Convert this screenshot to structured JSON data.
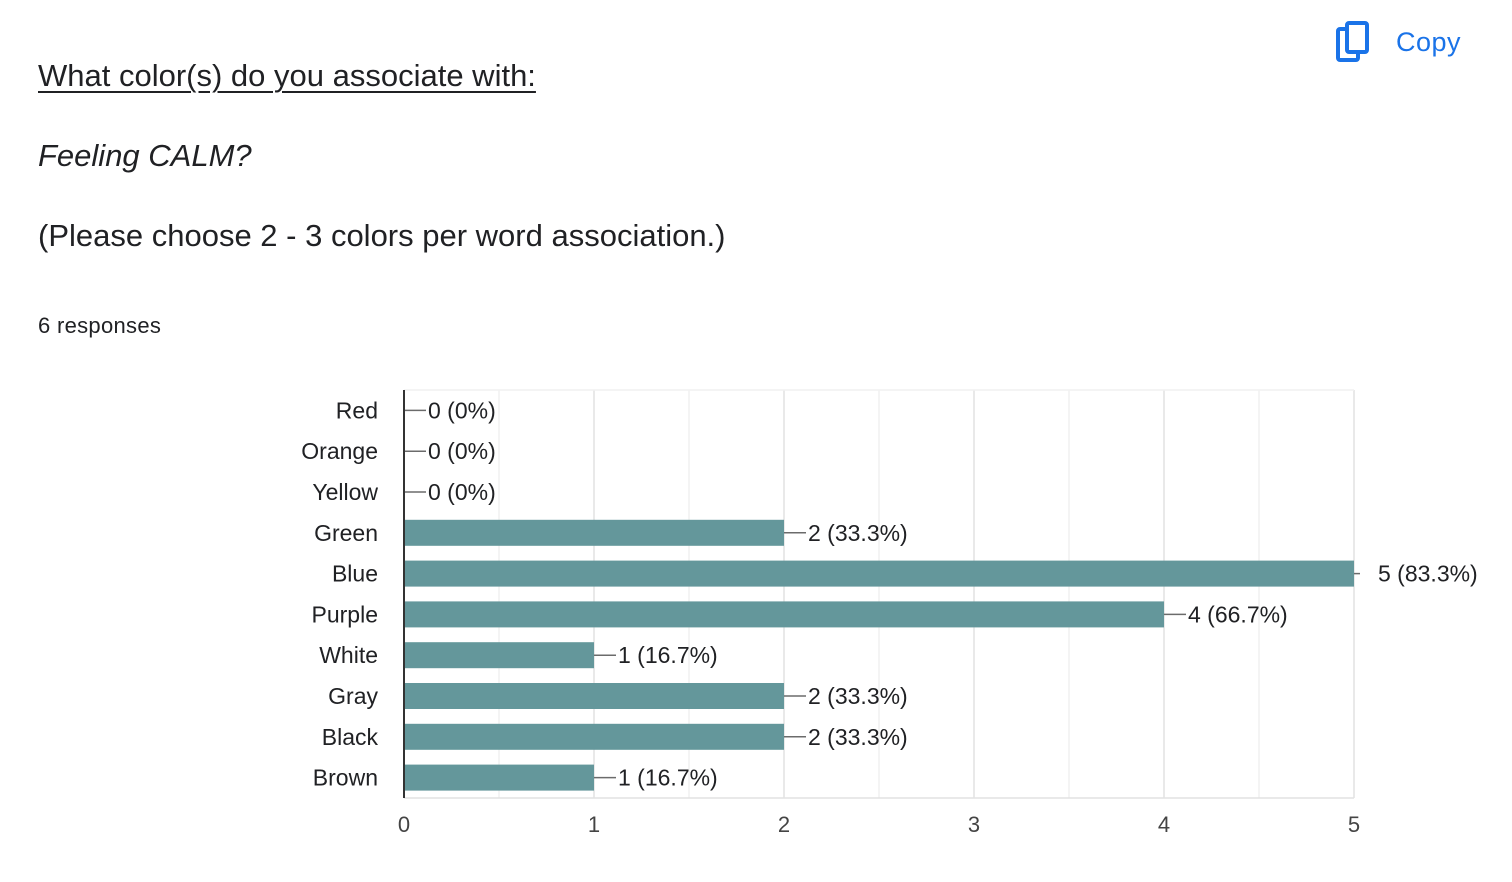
{
  "question": {
    "line1": "What color(s) do you associate with:",
    "line2": "Feeling CALM?",
    "line3": "(Please choose 2 - 3 colors per word association.)"
  },
  "responses_label": "6 responses",
  "copy_button": {
    "label": "Copy",
    "icon": "copy-icon"
  },
  "colors": {
    "bar": "#64979b",
    "accent": "#1a73e8",
    "grid": "#ececec",
    "text": "#202124"
  },
  "chart_data": {
    "type": "bar",
    "orientation": "horizontal",
    "categories": [
      "Red",
      "Orange",
      "Yellow",
      "Green",
      "Blue",
      "Purple",
      "White",
      "Gray",
      "Black",
      "Brown"
    ],
    "values": [
      0,
      0,
      0,
      2,
      5,
      4,
      1,
      2,
      2,
      1
    ],
    "data_labels": [
      "0 (0%)",
      "0 (0%)",
      "0 (0%)",
      "2 (33.3%)",
      "5 (83.3%)",
      "4 (66.7%)",
      "1 (16.7%)",
      "2 (33.3%)",
      "2 (33.3%)",
      "1 (16.7%)"
    ],
    "x_ticks": [
      "0",
      "1",
      "2",
      "3",
      "4",
      "5"
    ],
    "xlim": [
      0,
      5
    ],
    "grid": true,
    "legend": "none"
  }
}
